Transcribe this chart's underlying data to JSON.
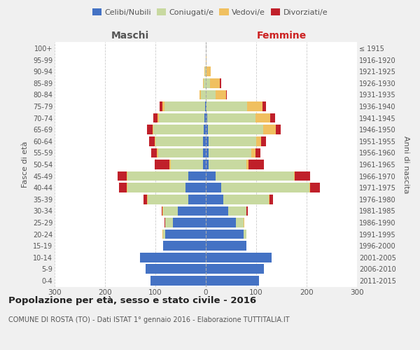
{
  "age_groups": [
    "0-4",
    "5-9",
    "10-14",
    "15-19",
    "20-24",
    "25-29",
    "30-34",
    "35-39",
    "40-44",
    "45-49",
    "50-54",
    "55-59",
    "60-64",
    "65-69",
    "70-74",
    "75-79",
    "80-84",
    "85-89",
    "90-94",
    "95-99",
    "100+"
  ],
  "birth_years": [
    "2011-2015",
    "2006-2010",
    "2001-2005",
    "1996-2000",
    "1991-1995",
    "1986-1990",
    "1981-1985",
    "1976-1980",
    "1971-1975",
    "1966-1970",
    "1961-1965",
    "1956-1960",
    "1951-1955",
    "1946-1950",
    "1941-1945",
    "1936-1940",
    "1931-1935",
    "1926-1930",
    "1921-1925",
    "1916-1920",
    "≤ 1915"
  ],
  "maschi": {
    "celibi": [
      110,
      120,
      130,
      85,
      80,
      65,
      55,
      35,
      40,
      35,
      5,
      5,
      5,
      4,
      3,
      2,
      0,
      0,
      0,
      0,
      0
    ],
    "coniugati": [
      0,
      0,
      0,
      0,
      5,
      15,
      30,
      80,
      115,
      120,
      65,
      90,
      95,
      100,
      90,
      80,
      10,
      4,
      2,
      0,
      0
    ],
    "vedovi": [
      0,
      0,
      0,
      0,
      1,
      1,
      1,
      1,
      2,
      2,
      2,
      2,
      2,
      2,
      3,
      4,
      2,
      2,
      1,
      0,
      0
    ],
    "divorziati": [
      0,
      0,
      0,
      0,
      0,
      1,
      2,
      8,
      15,
      18,
      30,
      12,
      10,
      10,
      8,
      5,
      0,
      0,
      0,
      0,
      0
    ]
  },
  "femmine": {
    "nubili": [
      105,
      115,
      130,
      80,
      75,
      60,
      45,
      35,
      30,
      20,
      5,
      5,
      5,
      4,
      3,
      2,
      0,
      0,
      0,
      0,
      0
    ],
    "coniugate": [
      0,
      0,
      0,
      0,
      5,
      15,
      35,
      90,
      175,
      155,
      75,
      85,
      95,
      110,
      95,
      80,
      20,
      8,
      2,
      0,
      0
    ],
    "vedove": [
      0,
      0,
      0,
      0,
      0,
      1,
      1,
      1,
      2,
      2,
      5,
      8,
      10,
      25,
      30,
      30,
      20,
      20,
      8,
      1,
      0
    ],
    "divorziate": [
      0,
      0,
      0,
      0,
      0,
      1,
      2,
      8,
      20,
      30,
      30,
      10,
      10,
      10,
      10,
      8,
      2,
      2,
      0,
      0,
      0
    ]
  },
  "colors": {
    "celibi_nubili": "#4472c4",
    "coniugati": "#c8d9a0",
    "vedovi": "#f0c060",
    "divorziati": "#c0202a"
  },
  "xlim": 300,
  "title": "Popolazione per età, sesso e stato civile - 2016",
  "subtitle": "COMUNE DI ROSTA (TO) - Dati ISTAT 1° gennaio 2016 - Elaborazione TUTTITALIA.IT",
  "xlabel_left": "Maschi",
  "xlabel_right": "Femmine",
  "ylabel_left": "Fasce di età",
  "ylabel_right": "Anni di nascita",
  "bg_color": "#f0f0f0",
  "plot_bg": "#ffffff"
}
